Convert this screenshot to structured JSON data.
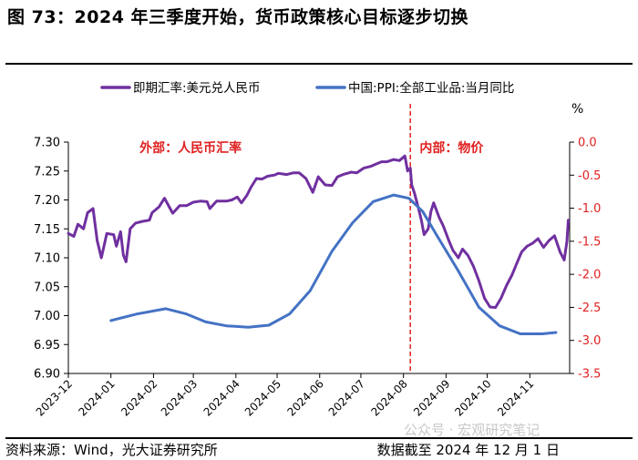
{
  "figure": {
    "title": "图 73：2024 年三季度开始，货币政策核心目标逐步切换",
    "source": "资料来源：Wind，光大证券研究所",
    "as_of": "数据截至 2024 年 12 月 1 日",
    "watermark": "公众号 · 宏观研究笔记"
  },
  "chart_data": {
    "type": "line",
    "legend_position": "top",
    "grid": false,
    "x_ticks": [
      "2023-12",
      "2024-01",
      "2024-02",
      "2024-03",
      "2024-04",
      "2024-05",
      "2024-06",
      "2024-07",
      "2024-08",
      "2024-09",
      "2024-10",
      "2024-11"
    ],
    "x_range": [
      "2023-12-01",
      "2024-11-30"
    ],
    "y_left": {
      "lim": [
        6.9,
        7.3
      ],
      "ticks": [
        "6.90",
        "6.95",
        "7.00",
        "7.05",
        "7.10",
        "7.15",
        "7.20",
        "7.25",
        "7.30"
      ]
    },
    "y_right": {
      "lim": [
        -3.5,
        0.0
      ],
      "unit": "%",
      "ticks": [
        "-3.5",
        "-3.0",
        "-2.5",
        "-2.0",
        "-1.5",
        "-1.0",
        "-0.5",
        "0.0"
      ],
      "tick_color": "#e02020"
    },
    "divider_date": "2024-08-06",
    "annotations": [
      {
        "text": "外部：人民币汇率",
        "color": "#e02020",
        "anchor_date": "2024-02-28",
        "y_value": 7.283
      },
      {
        "text": "内部：物价",
        "color": "#e02020",
        "anchor_date": "2024-09-05",
        "y_value": 7.283
      }
    ],
    "series": [
      {
        "name": "即期汇率:美元兑人民币",
        "axis": "left",
        "color": "#7030a0",
        "points": [
          [
            "2023-12-01",
            7.142
          ],
          [
            "2023-12-05",
            7.137
          ],
          [
            "2023-12-08",
            7.158
          ],
          [
            "2023-12-12",
            7.15
          ],
          [
            "2023-12-15",
            7.178
          ],
          [
            "2023-12-19",
            7.185
          ],
          [
            "2023-12-22",
            7.13
          ],
          [
            "2023-12-25",
            7.1
          ],
          [
            "2023-12-29",
            7.142
          ],
          [
            "2024-01-03",
            7.14
          ],
          [
            "2024-01-05",
            7.12
          ],
          [
            "2024-01-08",
            7.145
          ],
          [
            "2024-01-10",
            7.105
          ],
          [
            "2024-01-12",
            7.093
          ],
          [
            "2024-01-15",
            7.15
          ],
          [
            "2024-01-19",
            7.16
          ],
          [
            "2024-01-24",
            7.163
          ],
          [
            "2024-01-29",
            7.165
          ],
          [
            "2024-01-31",
            7.178
          ],
          [
            "2024-02-05",
            7.188
          ],
          [
            "2024-02-09",
            7.203
          ],
          [
            "2024-02-15",
            7.177
          ],
          [
            "2024-02-20",
            7.19
          ],
          [
            "2024-02-25",
            7.19
          ],
          [
            "2024-03-01",
            7.196
          ],
          [
            "2024-03-06",
            7.198
          ],
          [
            "2024-03-11",
            7.197
          ],
          [
            "2024-03-13",
            7.185
          ],
          [
            "2024-03-18",
            7.198
          ],
          [
            "2024-03-25",
            7.198
          ],
          [
            "2024-03-29",
            7.2
          ],
          [
            "2024-04-02",
            7.205
          ],
          [
            "2024-04-05",
            7.195
          ],
          [
            "2024-04-09",
            7.208
          ],
          [
            "2024-04-12",
            7.222
          ],
          [
            "2024-04-16",
            7.237
          ],
          [
            "2024-04-20",
            7.236
          ],
          [
            "2024-04-24",
            7.241
          ],
          [
            "2024-04-29",
            7.243
          ],
          [
            "2024-05-02",
            7.246
          ],
          [
            "2024-05-08",
            7.244
          ],
          [
            "2024-05-13",
            7.247
          ],
          [
            "2024-05-17",
            7.247
          ],
          [
            "2024-05-22",
            7.237
          ],
          [
            "2024-05-27",
            7.213
          ],
          [
            "2024-05-31",
            7.24
          ],
          [
            "2024-06-05",
            7.226
          ],
          [
            "2024-06-10",
            7.225
          ],
          [
            "2024-06-14",
            7.24
          ],
          [
            "2024-06-18",
            7.244
          ],
          [
            "2024-06-24",
            7.248
          ],
          [
            "2024-06-28",
            7.247
          ],
          [
            "2024-07-03",
            7.255
          ],
          [
            "2024-07-08",
            7.258
          ],
          [
            "2024-07-12",
            7.262
          ],
          [
            "2024-07-16",
            7.266
          ],
          [
            "2024-07-20",
            7.266
          ],
          [
            "2024-07-25",
            7.27
          ],
          [
            "2024-07-29",
            7.268
          ],
          [
            "2024-08-02",
            7.276
          ],
          [
            "2024-08-04",
            7.25
          ],
          [
            "2024-08-06",
            7.255
          ],
          [
            "2024-08-07",
            7.226
          ],
          [
            "2024-08-09",
            7.212
          ],
          [
            "2024-08-12",
            7.185
          ],
          [
            "2024-08-14",
            7.165
          ],
          [
            "2024-08-16",
            7.14
          ],
          [
            "2024-08-19",
            7.15
          ],
          [
            "2024-08-21",
            7.18
          ],
          [
            "2024-08-23",
            7.195
          ],
          [
            "2024-08-27",
            7.17
          ],
          [
            "2024-08-30",
            7.155
          ],
          [
            "2024-09-03",
            7.13
          ],
          [
            "2024-09-06",
            7.113
          ],
          [
            "2024-09-10",
            7.1
          ],
          [
            "2024-09-13",
            7.115
          ],
          [
            "2024-09-17",
            7.104
          ],
          [
            "2024-09-21",
            7.085
          ],
          [
            "2024-09-25",
            7.06
          ],
          [
            "2024-09-29",
            7.03
          ],
          [
            "2024-10-03",
            7.015
          ],
          [
            "2024-10-07",
            7.014
          ],
          [
            "2024-10-11",
            7.03
          ],
          [
            "2024-10-15",
            7.052
          ],
          [
            "2024-10-19",
            7.07
          ],
          [
            "2024-10-23",
            7.093
          ],
          [
            "2024-10-26",
            7.11
          ],
          [
            "2024-10-30",
            7.12
          ],
          [
            "2024-11-03",
            7.125
          ],
          [
            "2024-11-07",
            7.133
          ],
          [
            "2024-11-11",
            7.118
          ],
          [
            "2024-11-15",
            7.13
          ],
          [
            "2024-11-19",
            7.138
          ],
          [
            "2024-11-23",
            7.11
          ],
          [
            "2024-11-26",
            7.096
          ],
          [
            "2024-11-28",
            7.128
          ],
          [
            "2024-11-29",
            7.165
          ]
        ]
      },
      {
        "name": "中国:PPI:全部工业品:当月同比",
        "axis": "right",
        "color": "#4472c4",
        "points": [
          [
            "2024-01-01",
            -2.7
          ],
          [
            "2024-01-20",
            -2.6
          ],
          [
            "2024-02-10",
            -2.52
          ],
          [
            "2024-02-25",
            -2.6
          ],
          [
            "2024-03-10",
            -2.72
          ],
          [
            "2024-03-25",
            -2.78
          ],
          [
            "2024-04-10",
            -2.8
          ],
          [
            "2024-04-25",
            -2.77
          ],
          [
            "2024-05-10",
            -2.6
          ],
          [
            "2024-05-25",
            -2.25
          ],
          [
            "2024-06-10",
            -1.65
          ],
          [
            "2024-06-25",
            -1.22
          ],
          [
            "2024-07-10",
            -0.9
          ],
          [
            "2024-07-25",
            -0.8
          ],
          [
            "2024-08-05",
            -0.85
          ],
          [
            "2024-08-15",
            -1.05
          ],
          [
            "2024-08-25",
            -1.4
          ],
          [
            "2024-09-10",
            -1.95
          ],
          [
            "2024-09-25",
            -2.5
          ],
          [
            "2024-10-10",
            -2.78
          ],
          [
            "2024-10-25",
            -2.9
          ],
          [
            "2024-11-10",
            -2.9
          ],
          [
            "2024-11-20",
            -2.88
          ]
        ]
      }
    ]
  }
}
